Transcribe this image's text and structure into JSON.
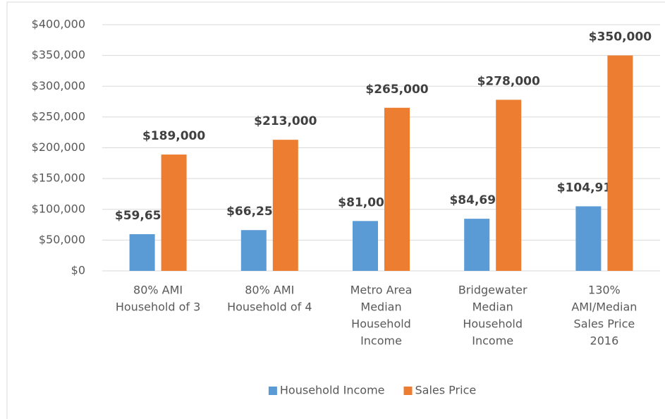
{
  "chart_data": {
    "type": "bar",
    "categories": [
      [
        "80% AMI",
        "Household of 3"
      ],
      [
        "80% AMI",
        "Household of 4"
      ],
      [
        "Metro Area",
        "Median",
        "Household",
        "Income"
      ],
      [
        "Bridgewater",
        "Median",
        "Household",
        "Income"
      ],
      [
        "130%",
        "AMI/Median",
        "Sales Price",
        "2016"
      ]
    ],
    "series": [
      {
        "name": "Household Income",
        "color": "#5b9bd5",
        "values": [
          59650,
          66250,
          81000,
          84697,
          104912
        ],
        "value_labels": [
          "$59,650",
          "$66,250",
          "$81,000",
          "$84,697",
          "$104,912"
        ]
      },
      {
        "name": "Sales Price",
        "color": "#ed7d31",
        "values": [
          189000,
          213000,
          265000,
          278000,
          350000
        ],
        "value_labels": [
          "$189,000",
          "$213,000",
          "$265,000",
          "$278,000",
          "$350,000"
        ]
      }
    ],
    "ylim": [
      0,
      400000
    ],
    "yticks": [
      {
        "value": 0,
        "label": "$0"
      },
      {
        "value": 50000,
        "label": "$50,000"
      },
      {
        "value": 100000,
        "label": "$100,000"
      },
      {
        "value": 150000,
        "label": "$150,000"
      },
      {
        "value": 200000,
        "label": "$200,000"
      },
      {
        "value": 250000,
        "label": "$250,000"
      },
      {
        "value": 300000,
        "label": "$300,000"
      },
      {
        "value": 350000,
        "label": "$350,000"
      },
      {
        "value": 400000,
        "label": "$400,000"
      }
    ],
    "grid": true,
    "legend": "bottom"
  }
}
